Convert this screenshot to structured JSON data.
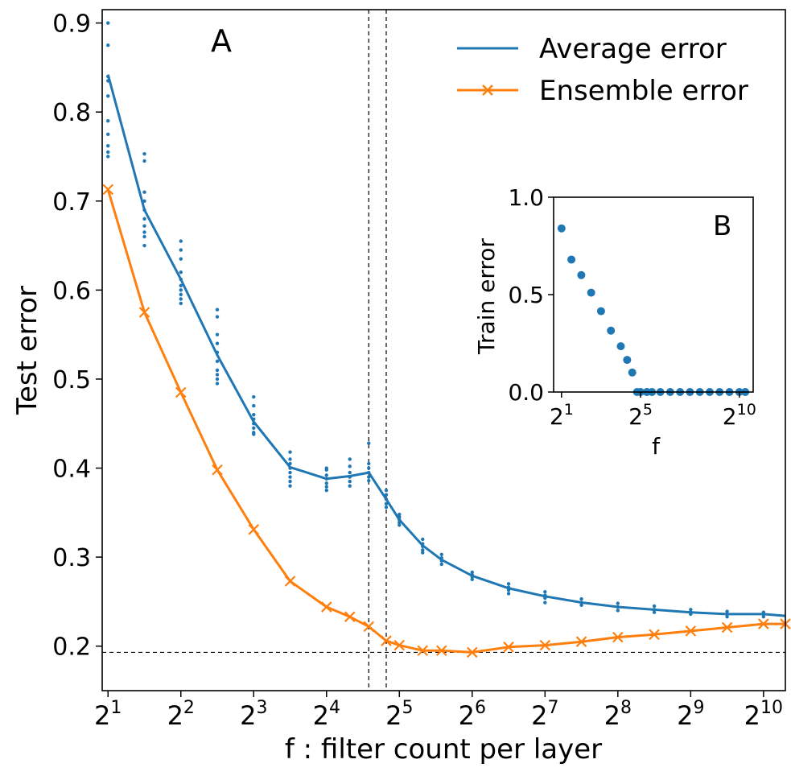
{
  "chart_data": [
    {
      "type": "line",
      "panel_label": "A",
      "xlabel": "f :  filter count per layer",
      "ylabel": "Test error",
      "x_scale": "log2",
      "xlim_log2": [
        0.92,
        10.3
      ],
      "ylim": [
        0.15,
        0.915
      ],
      "xtick_base": "2",
      "xtick_exponents": [
        "1",
        "2",
        "3",
        "4",
        "5",
        "6",
        "7",
        "8",
        "9",
        "10"
      ],
      "yticks": [
        "0.2",
        "0.3",
        "0.4",
        "0.5",
        "0.6",
        "0.7",
        "0.8",
        "0.9"
      ],
      "ytick_values": [
        0.2,
        0.3,
        0.4,
        0.5,
        0.6,
        0.7,
        0.8,
        0.9
      ],
      "reference_lines": {
        "horizontal_y": 0.193,
        "vertical_log2": [
          4.58,
          4.82
        ]
      },
      "legend": {
        "placement": "top-right",
        "entries": [
          "Average error",
          "Ensemble error"
        ]
      },
      "series": [
        {
          "name": "Average error",
          "color": "#1f77b4",
          "marker": "none",
          "x_log2": [
            1,
            1.5,
            2,
            2.5,
            3,
            3.5,
            4,
            4.32,
            4.58,
            4.82,
            5,
            5.32,
            5.58,
            6,
            6.5,
            7,
            7.5,
            8,
            8.5,
            9,
            9.5,
            10,
            10.3
          ],
          "values": [
            0.842,
            0.69,
            0.612,
            0.527,
            0.452,
            0.401,
            0.388,
            0.391,
            0.395,
            0.365,
            0.342,
            0.313,
            0.297,
            0.279,
            0.265,
            0.256,
            0.249,
            0.244,
            0.241,
            0.238,
            0.236,
            0.236,
            0.234
          ]
        },
        {
          "name": "Ensemble error",
          "color": "#ff7f0e",
          "marker": "x",
          "x_log2": [
            1,
            1.5,
            2,
            2.5,
            3,
            3.5,
            4,
            4.32,
            4.58,
            4.82,
            5,
            5.32,
            5.58,
            6,
            6.5,
            7,
            7.5,
            8,
            8.5,
            9,
            9.5,
            10,
            10.3
          ],
          "values": [
            0.713,
            0.575,
            0.485,
            0.398,
            0.331,
            0.273,
            0.244,
            0.233,
            0.222,
            0.206,
            0.201,
            0.195,
            0.195,
            0.193,
            0.199,
            0.201,
            0.205,
            0.21,
            0.213,
            0.217,
            0.221,
            0.225,
            0.225
          ]
        }
      ],
      "individual_runs": {
        "color": "#1f77b4",
        "points": [
          [
            1,
            0.9
          ],
          [
            1,
            0.875
          ],
          [
            1,
            0.84
          ],
          [
            1,
            0.835
          ],
          [
            1,
            0.818
          ],
          [
            1,
            0.79
          ],
          [
            1,
            0.775
          ],
          [
            1,
            0.762
          ],
          [
            1,
            0.755
          ],
          [
            1,
            0.75
          ],
          [
            1.5,
            0.753
          ],
          [
            1.5,
            0.745
          ],
          [
            1.5,
            0.71
          ],
          [
            1.5,
            0.7
          ],
          [
            1.5,
            0.69
          ],
          [
            1.5,
            0.68
          ],
          [
            1.5,
            0.672
          ],
          [
            1.5,
            0.665
          ],
          [
            1.5,
            0.66
          ],
          [
            1.5,
            0.65
          ],
          [
            2,
            0.655
          ],
          [
            2,
            0.645
          ],
          [
            2,
            0.635
          ],
          [
            2,
            0.62
          ],
          [
            2,
            0.612
          ],
          [
            2,
            0.605
          ],
          [
            2,
            0.6
          ],
          [
            2,
            0.595
          ],
          [
            2,
            0.59
          ],
          [
            2,
            0.585
          ],
          [
            2.5,
            0.578
          ],
          [
            2.5,
            0.57
          ],
          [
            2.5,
            0.55
          ],
          [
            2.5,
            0.54
          ],
          [
            2.5,
            0.53
          ],
          [
            2.5,
            0.52
          ],
          [
            2.5,
            0.51
          ],
          [
            2.5,
            0.505
          ],
          [
            2.5,
            0.5
          ],
          [
            2.5,
            0.495
          ],
          [
            3,
            0.48
          ],
          [
            3,
            0.47
          ],
          [
            3,
            0.46
          ],
          [
            3,
            0.455
          ],
          [
            3,
            0.45
          ],
          [
            3,
            0.445
          ],
          [
            3,
            0.44
          ],
          [
            3,
            0.438
          ],
          [
            3.5,
            0.418
          ],
          [
            3.5,
            0.41
          ],
          [
            3.5,
            0.405
          ],
          [
            3.5,
            0.4
          ],
          [
            3.5,
            0.395
          ],
          [
            3.5,
            0.39
          ],
          [
            3.5,
            0.385
          ],
          [
            3.5,
            0.38
          ],
          [
            4,
            0.4
          ],
          [
            4,
            0.398
          ],
          [
            4,
            0.392
          ],
          [
            4,
            0.388
          ],
          [
            4,
            0.383
          ],
          [
            4,
            0.379
          ],
          [
            4,
            0.375
          ],
          [
            4.32,
            0.41
          ],
          [
            4.32,
            0.402
          ],
          [
            4.32,
            0.395
          ],
          [
            4.32,
            0.39
          ],
          [
            4.32,
            0.385
          ],
          [
            4.32,
            0.38
          ],
          [
            4.58,
            0.428
          ],
          [
            4.58,
            0.405
          ],
          [
            4.58,
            0.4
          ],
          [
            4.58,
            0.395
          ],
          [
            4.58,
            0.39
          ],
          [
            4.58,
            0.386
          ],
          [
            4.82,
            0.375
          ],
          [
            4.82,
            0.37
          ],
          [
            4.82,
            0.365
          ],
          [
            4.82,
            0.36
          ],
          [
            4.82,
            0.356
          ],
          [
            5,
            0.348
          ],
          [
            5,
            0.345
          ],
          [
            5,
            0.342
          ],
          [
            5,
            0.339
          ],
          [
            5,
            0.336
          ],
          [
            5.32,
            0.32
          ],
          [
            5.32,
            0.315
          ],
          [
            5.32,
            0.312
          ],
          [
            5.32,
            0.308
          ],
          [
            5.32,
            0.305
          ],
          [
            5.58,
            0.303
          ],
          [
            5.58,
            0.299
          ],
          [
            5.58,
            0.296
          ],
          [
            5.58,
            0.292
          ],
          [
            6,
            0.283
          ],
          [
            6,
            0.28
          ],
          [
            6,
            0.278
          ],
          [
            6,
            0.275
          ],
          [
            6.5,
            0.27
          ],
          [
            6.5,
            0.266
          ],
          [
            6.5,
            0.263
          ],
          [
            6.5,
            0.259
          ],
          [
            7,
            0.261
          ],
          [
            7,
            0.257
          ],
          [
            7,
            0.254
          ],
          [
            7,
            0.249
          ],
          [
            7.5,
            0.253
          ],
          [
            7.5,
            0.249
          ],
          [
            7.5,
            0.246
          ],
          [
            8,
            0.248
          ],
          [
            8,
            0.244
          ],
          [
            8,
            0.24
          ],
          [
            8.5,
            0.245
          ],
          [
            8.5,
            0.241
          ],
          [
            8.5,
            0.238
          ],
          [
            9,
            0.241
          ],
          [
            9,
            0.238
          ],
          [
            9,
            0.236
          ],
          [
            9.5,
            0.239
          ],
          [
            9.5,
            0.236
          ],
          [
            9.5,
            0.233
          ],
          [
            10,
            0.238
          ],
          [
            10,
            0.236
          ],
          [
            10,
            0.233
          ]
        ]
      }
    },
    {
      "type": "scatter",
      "panel_label": "B",
      "xlabel": "f",
      "ylabel": "Train error",
      "x_scale": "log2",
      "xlim_log2": [
        0.6,
        10.7
      ],
      "ylim": [
        0,
        1
      ],
      "yticks": [
        "0.0",
        "0.5",
        "1.0"
      ],
      "ytick_values": [
        0,
        0.5,
        1.0
      ],
      "xtick_base": "2",
      "xtick_exponents": [
        "1",
        "5",
        "10"
      ],
      "xtick_log2": [
        1,
        5,
        10
      ],
      "series": [
        {
          "name": "Train error",
          "color": "#1f77b4",
          "marker": "o",
          "x_log2": [
            1,
            1.5,
            2,
            2.5,
            3,
            3.5,
            4,
            4.32,
            4.58,
            4.82,
            5,
            5.32,
            5.58,
            6,
            6.5,
            7,
            7.5,
            8,
            8.5,
            9,
            9.5,
            10,
            10.3
          ],
          "values": [
            0.84,
            0.68,
            0.6,
            0.51,
            0.415,
            0.315,
            0.235,
            0.165,
            0.1,
            0,
            0,
            0,
            0,
            0,
            0,
            0,
            0,
            0,
            0,
            0,
            0,
            0,
            0
          ]
        }
      ]
    }
  ]
}
